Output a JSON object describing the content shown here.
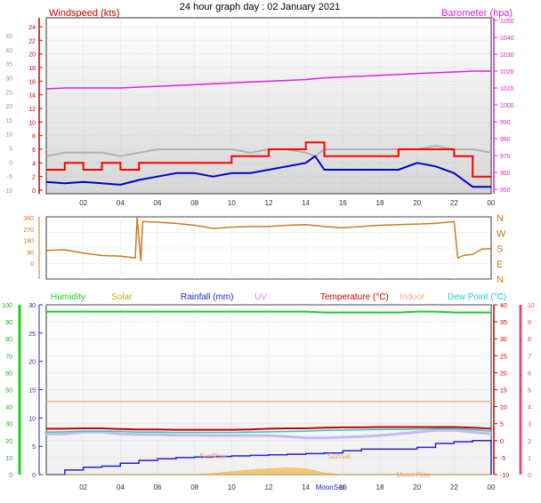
{
  "title": "24 hour graph day : 02 January 2021",
  "colors": {
    "wind_axis": "#cc0000",
    "wind_gust": "#ff0000",
    "wind_avg": "#0000cc",
    "wind_gray": "#b0b0b0",
    "baro": "#dd22dd",
    "wind_dir": "#cc7a22",
    "humidity": "#22cc22",
    "solar": "#ccaa00",
    "rain": "#2222cc",
    "uv": "#dd88dd",
    "temp": "#cc0000",
    "indoor": "#f0b090",
    "dewpoint": "#22cccc",
    "pink_axis": "#ee4488",
    "grid": "#bbbbbb"
  },
  "time_ticks": [
    "02",
    "04",
    "06",
    "08",
    "10",
    "12",
    "14",
    "16",
    "18",
    "20",
    "22",
    "00"
  ],
  "chart_data": [
    {
      "type": "line",
      "name": "wind_baro",
      "left_label": "Windspeed (kts)",
      "right_label": "Barometer (hpa)",
      "left_outer_ticks": [
        "45",
        "40",
        "35",
        "30",
        "25",
        "20",
        "15",
        "10",
        "5",
        "0",
        "-5",
        "-10"
      ],
      "left_inner_ticks": [
        "24",
        "22",
        "20",
        "18",
        "16",
        "14",
        "12",
        "10",
        "8",
        "6",
        "4",
        "2",
        "0"
      ],
      "right_ticks": [
        "1050",
        "1040",
        "1030",
        "1020",
        "1010",
        "1000",
        "990",
        "980",
        "970",
        "960",
        "950"
      ],
      "ylim_wind": [
        0,
        25
      ],
      "ylim_baro": [
        945,
        1050
      ],
      "x": [
        0,
        1,
        2,
        3,
        4,
        5,
        6,
        7,
        8,
        9,
        10,
        11,
        12,
        13,
        14,
        14.5,
        15,
        16,
        17,
        18,
        19,
        20,
        21,
        22,
        23,
        24
      ],
      "series": [
        {
          "key": "barometer",
          "values": [
            1009.5,
            1010,
            1010,
            1010,
            1010,
            1010.5,
            1011,
            1011.5,
            1012,
            1012.5,
            1013,
            1013.5,
            1014,
            1014.5,
            1015,
            1015.5,
            1016,
            1016.5,
            1017,
            1017.5,
            1018,
            1018.5,
            1019,
            1019.5,
            1020,
            1020
          ]
        },
        {
          "key": "gust",
          "values": [
            3,
            4,
            3,
            4,
            3,
            4,
            4,
            4,
            4,
            4,
            5,
            5,
            6,
            6,
            7,
            7,
            5,
            5,
            5,
            5,
            6,
            6,
            6,
            5,
            2,
            2
          ]
        },
        {
          "key": "average",
          "values": [
            1.2,
            1,
            1.2,
            1,
            0.8,
            1.5,
            2,
            2.5,
            2.5,
            2,
            2.5,
            2.5,
            3,
            3.5,
            4,
            5,
            3,
            3,
            3,
            3,
            3,
            4,
            3.5,
            2.5,
            0.5,
            0.5
          ]
        },
        {
          "key": "gray",
          "values": [
            5,
            5.5,
            5.5,
            5.5,
            5,
            5.5,
            6,
            6,
            6,
            6,
            6,
            5.5,
            6,
            6,
            5.5,
            5,
            6,
            6,
            6,
            6,
            6,
            6,
            6.5,
            6,
            6,
            5.5
          ]
        }
      ]
    },
    {
      "type": "line",
      "name": "wind_direction",
      "left_ticks": [
        "360",
        "270",
        "180",
        "90",
        "0"
      ],
      "right_ticks": [
        "N",
        "W",
        "S",
        "E",
        "N"
      ],
      "ylim": [
        0,
        360
      ],
      "x": [
        0,
        1,
        2,
        3,
        4,
        4.8,
        4.9,
        5.1,
        5.2,
        6,
        7,
        8,
        9,
        10,
        11,
        12,
        13,
        14,
        15,
        16,
        17,
        18,
        19,
        20,
        21,
        22,
        22.2,
        22.5,
        23,
        23.5,
        24
      ],
      "series": [
        {
          "key": "direction",
          "values": [
            100,
            105,
            80,
            60,
            55,
            40,
            360,
            20,
            330,
            325,
            315,
            300,
            275,
            285,
            290,
            290,
            300,
            305,
            290,
            280,
            290,
            300,
            305,
            310,
            315,
            330,
            40,
            60,
            70,
            110,
            115
          ]
        }
      ]
    },
    {
      "type": "line",
      "name": "temp_humidity",
      "legend": [
        "Humidity",
        "Solar",
        "Rainfall (mm)",
        "UV",
        "Temperature (°C)",
        "Indoor",
        "Dew Point (°C)"
      ],
      "left_outer_ticks": [
        "100",
        "90",
        "80",
        "70",
        "60",
        "50",
        "40",
        "30",
        "20",
        "10",
        "0"
      ],
      "left_inner_ticks": [
        "30",
        "25",
        "20",
        "15",
        "10",
        "5",
        "0"
      ],
      "right_inner_ticks": [
        "40",
        "35",
        "30",
        "25",
        "20",
        "15",
        "10",
        "5",
        "0",
        "-5",
        "-10"
      ],
      "right_outer_ticks": [
        "10",
        "9",
        "8",
        "7",
        "6",
        "5",
        "4",
        "3",
        "2",
        "1",
        "0"
      ],
      "ylim_temp": [
        -10,
        40
      ],
      "ylim_humidity": [
        0,
        100
      ],
      "annotations": {
        "sunrise": "SunRise",
        "sunset": "SunSet",
        "moonrise": "Moon Rise",
        "moonset": "MoonSet"
      },
      "x": [
        0,
        1,
        2,
        3,
        4,
        5,
        6,
        7,
        8,
        9,
        10,
        11,
        12,
        13,
        14,
        15,
        16,
        17,
        18,
        19,
        20,
        21,
        22,
        23,
        24
      ],
      "series": [
        {
          "key": "humidity",
          "values": [
            96,
            96,
            96,
            96,
            96,
            96,
            96,
            96,
            96,
            96,
            96,
            96,
            96,
            96,
            96,
            95.5,
            95.5,
            95.5,
            95.5,
            95.5,
            96,
            96,
            95.5,
            95.5,
            95.5
          ]
        },
        {
          "key": "indoor",
          "values": [
            11.5,
            11.5,
            11.5,
            11.5,
            11.5,
            11.5,
            11.5,
            11.5,
            11.5,
            11.5,
            11.5,
            11.5,
            11.5,
            11.5,
            11.5,
            11.5,
            11.5,
            11.5,
            11.5,
            11.5,
            11.5,
            11.5,
            11.5,
            11.5,
            11.5
          ]
        },
        {
          "key": "temperature",
          "values": [
            3.5,
            3.5,
            3.6,
            3.6,
            3.4,
            3.3,
            3.3,
            3.2,
            3.2,
            3.2,
            3.2,
            3.3,
            3.5,
            3.6,
            3.6,
            3.8,
            3.9,
            3.9,
            4,
            4,
            4,
            4,
            4,
            3.8,
            3.5
          ]
        },
        {
          "key": "dewpoint",
          "values": [
            2.5,
            2.6,
            2.8,
            2.8,
            2.7,
            2.5,
            2.5,
            2.4,
            2.4,
            2.4,
            2.4,
            2.5,
            2.6,
            2.7,
            2.8,
            3,
            3.1,
            3.2,
            3.3,
            3.3,
            3.4,
            3.5,
            3.5,
            3.2,
            2.8
          ]
        },
        {
          "key": "uv_band",
          "values": [
            2,
            2,
            2.5,
            2.5,
            2,
            1.8,
            1.8,
            1.6,
            1.6,
            1.5,
            1.5,
            1.5,
            1.5,
            1.2,
            0.8,
            0.8,
            1,
            1.2,
            1.5,
            2,
            2.5,
            3,
            3,
            2.5,
            2
          ]
        },
        {
          "key": "rainfall",
          "values": [
            0,
            0.8,
            1.3,
            1.5,
            2,
            2.5,
            2.8,
            3,
            3.1,
            3.2,
            3.3,
            3.4,
            3.5,
            3.6,
            3.7,
            3.8,
            4.2,
            4.5,
            4.5,
            4.5,
            4.8,
            5.5,
            5.8,
            6,
            6
          ]
        },
        {
          "key": "solar",
          "values": [
            0,
            0,
            0,
            0,
            0,
            0,
            0,
            0,
            0,
            0.2,
            0.5,
            0.8,
            1,
            1.2,
            1,
            0.3,
            0,
            0,
            0,
            0,
            0,
            0,
            0,
            0,
            0
          ]
        }
      ]
    }
  ]
}
